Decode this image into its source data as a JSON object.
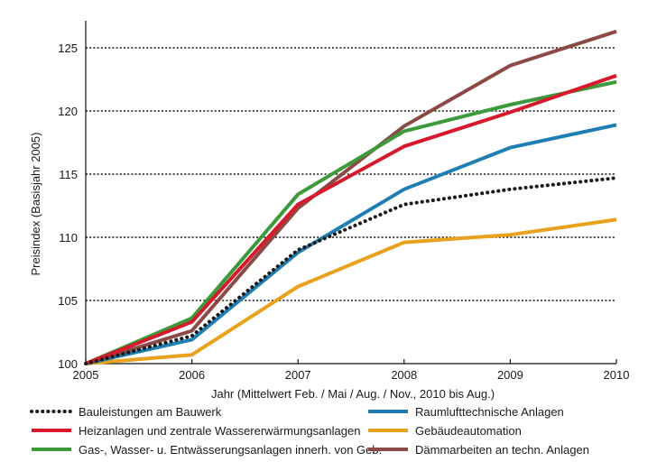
{
  "chart_data": {
    "type": "line",
    "title": "",
    "xlabel": "Jahr (Mittelwert Feb. / Mai / Aug. / Nov., 2010 bis Aug.)",
    "ylabel": "Preisindex (Basisjahr 2005)",
    "x": [
      2005,
      2006,
      2007,
      2008,
      2009,
      2010
    ],
    "xlim": [
      2005,
      2010
    ],
    "ylim": [
      100,
      127
    ],
    "yticks": [
      100,
      105,
      110,
      115,
      120,
      125
    ],
    "grid": "horizontal dotted",
    "legend_position": "bottom",
    "series": [
      {
        "name": "Bauleistungen am Bauwerk",
        "color": "#1a1a1a",
        "style": "dotted",
        "values": [
          100,
          102.2,
          109.0,
          112.6,
          113.8,
          114.7
        ]
      },
      {
        "name": "Raumlufttechnische Anlagen",
        "color": "#1f7fb4",
        "style": "solid",
        "values": [
          100,
          101.9,
          108.8,
          113.8,
          117.1,
          118.9
        ]
      },
      {
        "name": "Heizanlagen und zentrale Wassererwärmungsanlagen",
        "color": "#d7192c",
        "style": "solid",
        "values": [
          100,
          103.3,
          112.6,
          117.2,
          119.9,
          122.8
        ]
      },
      {
        "name": "Gebäudeautomation",
        "color": "#e9a21d",
        "style": "solid",
        "values": [
          100,
          100.7,
          106.1,
          109.6,
          110.2,
          111.4
        ]
      },
      {
        "name": "Gas-, Wasser- u. Entwässerungsanlagen innerh. von Geb.",
        "color": "#3c9a3a",
        "style": "solid",
        "values": [
          100,
          103.6,
          113.4,
          118.4,
          120.5,
          122.3
        ]
      },
      {
        "name": "Dämmarbeiten an techn. Anlagen",
        "color": "#8b4a45",
        "style": "solid",
        "values": [
          100,
          102.6,
          112.3,
          118.8,
          123.6,
          126.3
        ]
      }
    ]
  }
}
